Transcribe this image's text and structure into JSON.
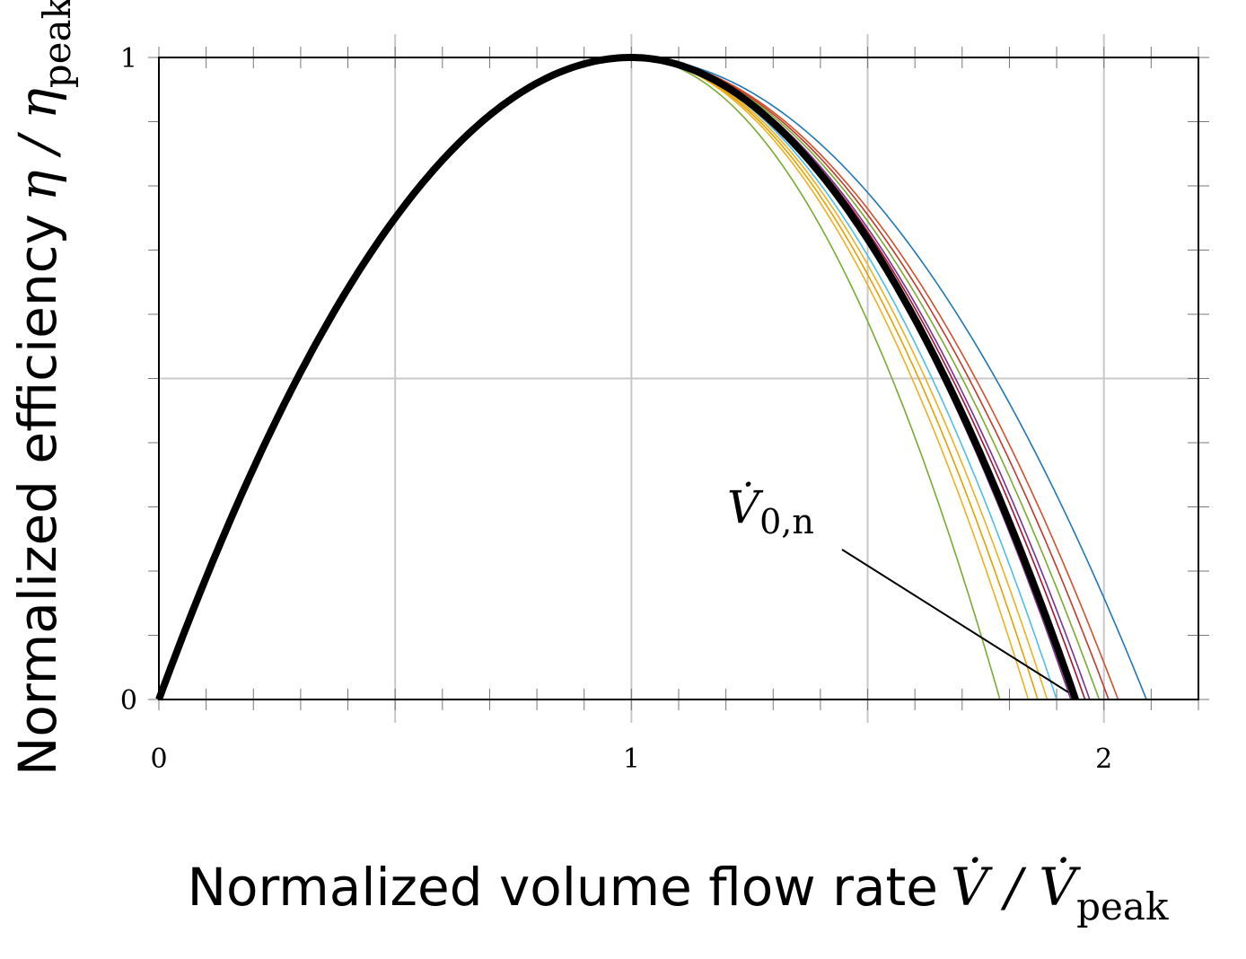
{
  "chart_data": {
    "type": "line",
    "xlabel": "Normalized volume flow rate",
    "ylabel": "Normalized efficiency",
    "xlabel_symbol": {
      "base": "V̇",
      "sep": " / ",
      "base2": "V̇",
      "sub2": "peak"
    },
    "ylabel_symbol": {
      "base": "η",
      "sep": " / ",
      "base2": "η",
      "sub2": "peak"
    },
    "xlim": [
      0,
      2.2
    ],
    "ylim": [
      0,
      1
    ],
    "x_tick_labels": [
      {
        "value": 0,
        "label": "0"
      },
      {
        "value": 1,
        "label": "1"
      },
      {
        "value": 2,
        "label": "2"
      }
    ],
    "y_tick_labels": [
      {
        "value": 0,
        "label": "0"
      },
      {
        "value": 1,
        "label": "1"
      }
    ],
    "x_major_grid": [
      0.5,
      1,
      1.5,
      2
    ],
    "y_major_grid": [
      0.5
    ],
    "x_minor_step": 0.1,
    "y_minor_step": 0.1,
    "annotation": {
      "base": "V̇",
      "sub": "0,n",
      "x": 1.94,
      "y": 0
    },
    "series": [
      {
        "color": "#1f77b4",
        "x0": 2.09,
        "width": 1.6
      },
      {
        "color": "#d3502b",
        "x0": 2.03,
        "width": 1.6
      },
      {
        "color": "#c0392b",
        "x0": 2.01,
        "width": 1.6
      },
      {
        "color": "#77ac30",
        "x0": 1.99,
        "width": 1.6
      },
      {
        "color": "#7e2f8e",
        "x0": 1.97,
        "width": 1.6
      },
      {
        "color": "#a2142f",
        "x0": 1.96,
        "width": 1.6
      },
      {
        "color": "#7e2f8e",
        "x0": 1.93,
        "width": 1.6
      },
      {
        "color": "#4dbeee",
        "x0": 1.9,
        "width": 1.6
      },
      {
        "color": "#edb120",
        "x0": 1.88,
        "width": 1.6
      },
      {
        "color": "#e6a000",
        "x0": 1.86,
        "width": 1.6
      },
      {
        "color": "#edb120",
        "x0": 1.84,
        "width": 1.6
      },
      {
        "color": "#77ac30",
        "x0": 1.78,
        "width": 1.6
      },
      {
        "color": "#000000",
        "x0": 1.94,
        "width": 8
      }
    ]
  }
}
